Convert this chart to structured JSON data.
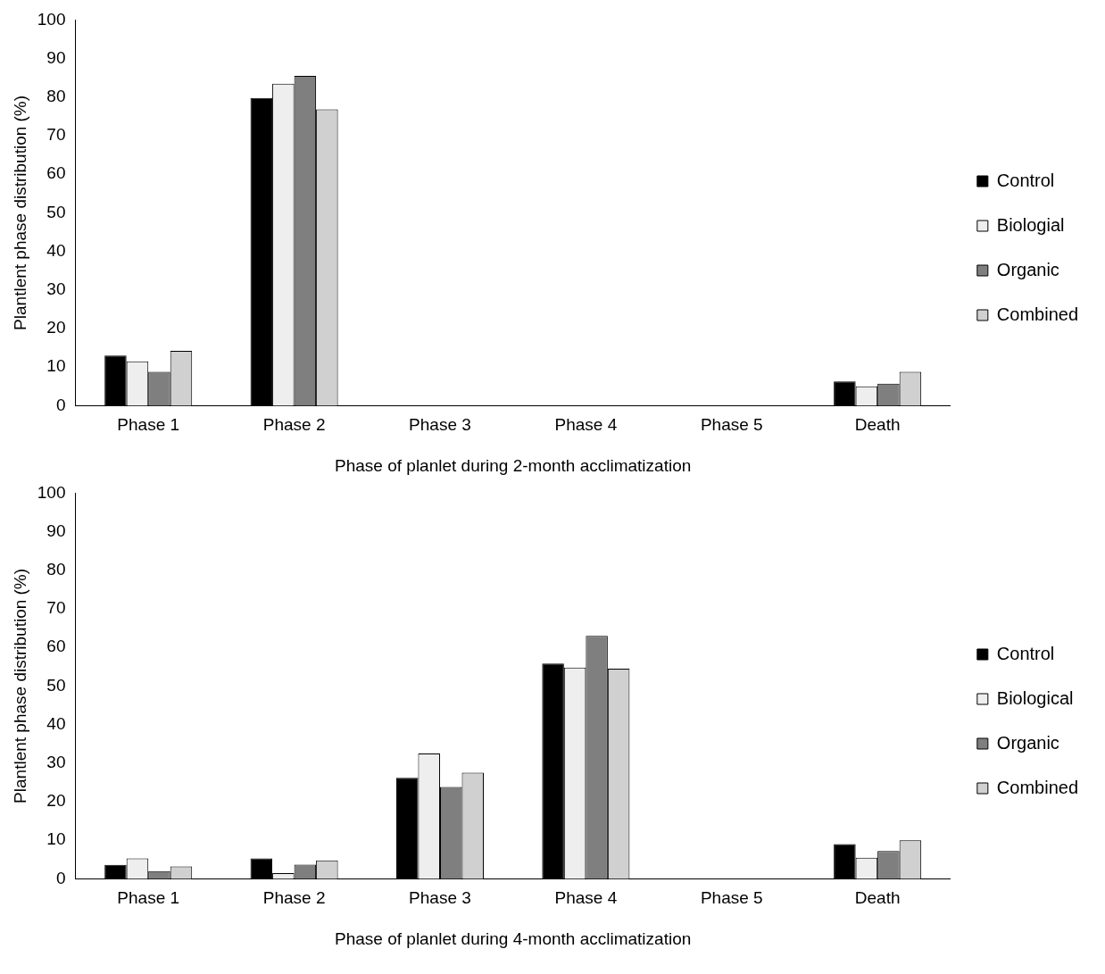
{
  "chart_data": [
    {
      "type": "bar",
      "xlabel": "Phase of planlet during 2-month acclimatization",
      "ylabel": "Plantlent phase distribution (%)",
      "categories": [
        "Phase 1",
        "Phase 2",
        "Phase 3",
        "Phase 4",
        "Phase 5",
        "Death"
      ],
      "ylim": [
        0,
        100
      ],
      "yticks": [
        0,
        10,
        20,
        30,
        40,
        50,
        60,
        70,
        80,
        90,
        100
      ],
      "grid": false,
      "legend": "right",
      "series": [
        {
          "name": "Control",
          "color": "#000000",
          "values": [
            13,
            79.8,
            0,
            0,
            0,
            6.3
          ]
        },
        {
          "name": "Biologial",
          "color": "#eeeeee",
          "values": [
            11.5,
            83.5,
            0,
            0,
            0,
            5
          ]
        },
        {
          "name": "Organic",
          "color": "#7f7f7f",
          "values": [
            8.8,
            85.5,
            0,
            0,
            0,
            5.7
          ]
        },
        {
          "name": "Combined",
          "color": "#d0d0d0",
          "values": [
            14.2,
            76.8,
            0,
            0,
            0,
            8.8
          ]
        }
      ]
    },
    {
      "type": "bar",
      "xlabel": "Phase of planlet during 4-month acclimatization",
      "ylabel": "Plantlent phase distribution (%)",
      "categories": [
        "Phase 1",
        "Phase 2",
        "Phase 3",
        "Phase 4",
        "Phase 5",
        "Death"
      ],
      "ylim": [
        0,
        100
      ],
      "yticks": [
        0,
        10,
        20,
        30,
        40,
        50,
        60,
        70,
        80,
        90,
        100
      ],
      "grid": false,
      "legend": "right",
      "series": [
        {
          "name": "Control",
          "color": "#000000",
          "values": [
            3.6,
            5.3,
            26.2,
            55.8,
            0,
            9
          ]
        },
        {
          "name": "Biological",
          "color": "#eeeeee",
          "values": [
            5.3,
            1.5,
            32.5,
            54.8,
            0,
            5.5
          ]
        },
        {
          "name": "Organic",
          "color": "#7f7f7f",
          "values": [
            2,
            3.7,
            23.8,
            63,
            0,
            7.2
          ]
        },
        {
          "name": "Combined",
          "color": "#d0d0d0",
          "values": [
            3.2,
            4.8,
            27.5,
            54.5,
            0,
            10
          ]
        }
      ]
    }
  ]
}
